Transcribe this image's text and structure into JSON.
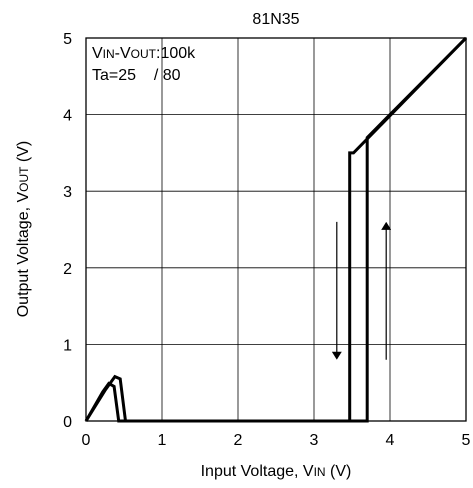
{
  "chart_data": {
    "type": "line",
    "title": "81N35",
    "xlabel": {
      "main": "Input Voltage, V",
      "sub": "IN",
      "unit": " (V)"
    },
    "ylabel": {
      "main": "Output Voltage, V",
      "sub": "OUT",
      "unit": " (V)"
    },
    "xlim": [
      0,
      5
    ],
    "ylim": [
      0,
      5
    ],
    "xticks": [
      "0",
      "1",
      "2",
      "3",
      "4",
      "5"
    ],
    "yticks": [
      "0",
      "1",
      "2",
      "3",
      "4",
      "5"
    ],
    "grid": true,
    "annotation": {
      "line1": {
        "v1": "V",
        "s1": "IN",
        "dash": "-V",
        "s2": "OUT",
        "rest": ":100k"
      },
      "line2": "Ta=25    / 80"
    },
    "series": [
      {
        "curve": "rising-threshold",
        "x": [
          0.0,
          0.25,
          0.38,
          0.45,
          0.52,
          3.7,
          3.7,
          5.0
        ],
        "y": [
          0.0,
          0.4,
          0.58,
          0.55,
          0.0,
          0.0,
          3.7,
          5.0
        ]
      },
      {
        "curve": "falling-threshold",
        "x": [
          0.0,
          0.22,
          0.3,
          0.37,
          0.43,
          3.47,
          3.47,
          3.52,
          5.0
        ],
        "y": [
          0.0,
          0.38,
          0.49,
          0.45,
          0.0,
          0.0,
          3.5,
          3.5,
          5.0
        ]
      }
    ],
    "arrows": [
      {
        "direction": "down",
        "x": 3.3,
        "y_from": 2.6,
        "y_to": 0.8
      },
      {
        "direction": "up",
        "x": 3.95,
        "y_from": 0.8,
        "y_to": 2.6
      }
    ]
  }
}
